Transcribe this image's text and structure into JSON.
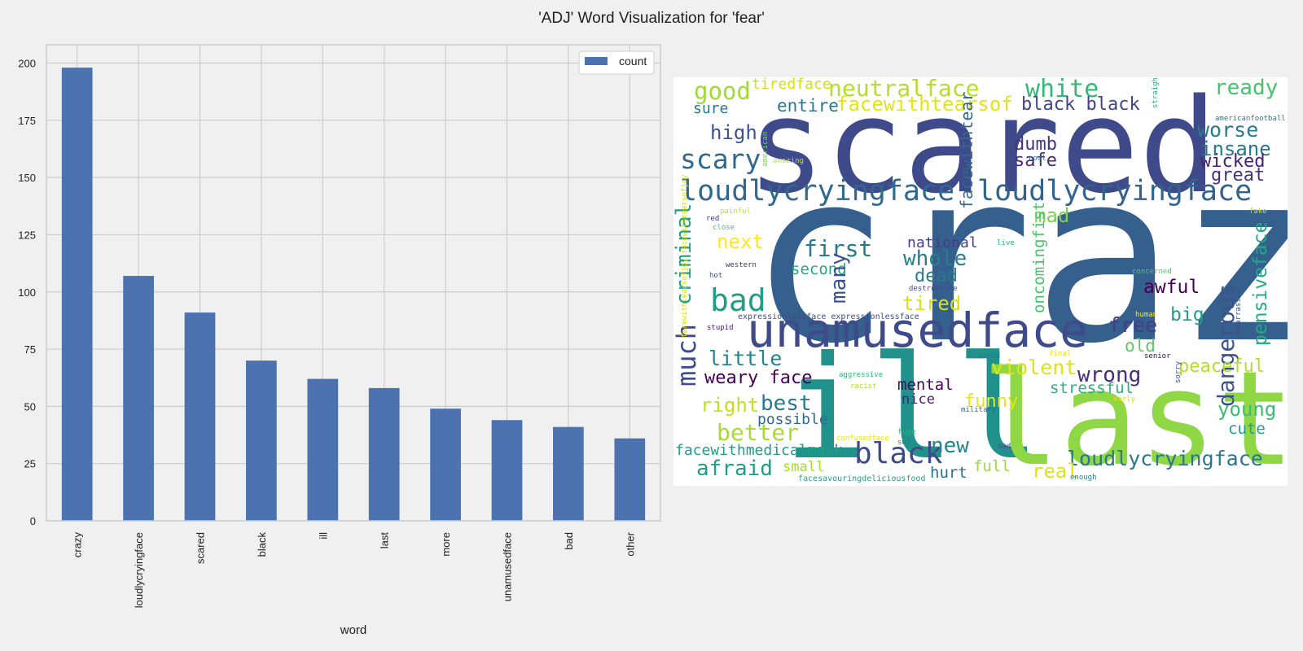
{
  "chart_data": [
    {
      "type": "bar",
      "title": "'ADJ' Word Visualization for 'fear'",
      "xlabel": "word",
      "ylabel": "",
      "categories": [
        "crazy",
        "loudlycryingface",
        "scared",
        "black",
        "ill",
        "last",
        "more",
        "unamusedface",
        "bad",
        "other"
      ],
      "series": [
        {
          "name": "count",
          "values": [
            198,
            107,
            91,
            70,
            62,
            58,
            49,
            44,
            41,
            36
          ]
        }
      ],
      "yticks": [
        0,
        25,
        50,
        75,
        100,
        125,
        150,
        175,
        200
      ],
      "ylim": [
        0,
        208
      ],
      "grid": true,
      "legend": "top-right",
      "bar_color": "#4c72b0"
    },
    {
      "type": "wordcloud",
      "words": [
        {
          "text": "crazy",
          "color": "#355f8d"
        },
        {
          "text": "scared",
          "color": "#3e4a89"
        },
        {
          "text": "ill",
          "color": "#21918c"
        },
        {
          "text": "last",
          "color": "#8fd744"
        },
        {
          "text": "unamusedface",
          "color": "#3e4a89"
        },
        {
          "text": "loudlycryingface",
          "color": "#31688e"
        },
        {
          "text": "loudlycryingface",
          "color": "#33638d"
        },
        {
          "text": "loudlycryingface",
          "color": "#2a788e"
        },
        {
          "text": "black",
          "color": "#3e4a89"
        },
        {
          "text": "neutralface",
          "color": "#b5de2b"
        },
        {
          "text": "facewithtearsof",
          "color": "#e3e418"
        },
        {
          "text": "white",
          "color": "#35b779"
        },
        {
          "text": "good",
          "color": "#a0da39"
        },
        {
          "text": "tiredface",
          "color": "#d0e11c"
        },
        {
          "text": "entire",
          "color": "#2a788e"
        },
        {
          "text": "sure",
          "color": "#2a788e"
        },
        {
          "text": "black black",
          "color": "#414487"
        },
        {
          "text": "ready",
          "color": "#4ac16d"
        },
        {
          "text": "worse",
          "color": "#2a788e"
        },
        {
          "text": "insane",
          "color": "#2a788e"
        },
        {
          "text": "wicked",
          "color": "#482173"
        },
        {
          "text": "great",
          "color": "#46337e"
        },
        {
          "text": "high",
          "color": "#3b528b"
        },
        {
          "text": "scary",
          "color": "#31688e"
        },
        {
          "text": "dumb",
          "color": "#46337e"
        },
        {
          "text": "safe",
          "color": "#482878"
        },
        {
          "text": "facewithtear",
          "color": "#31688e"
        },
        {
          "text": "criminal",
          "color": "#1fa187"
        },
        {
          "text": "mad",
          "color": "#7ad151"
        },
        {
          "text": "first",
          "color": "#2a788e"
        },
        {
          "text": "next",
          "color": "#fde725"
        },
        {
          "text": "national",
          "color": "#433e85"
        },
        {
          "text": "whole",
          "color": "#277f8e"
        },
        {
          "text": "second",
          "color": "#22a884"
        },
        {
          "text": "many",
          "color": "#3b528b"
        },
        {
          "text": "dead",
          "color": "#2a788e"
        },
        {
          "text": "bad",
          "color": "#1f9e89"
        },
        {
          "text": "tired",
          "color": "#d8e219"
        },
        {
          "text": "much",
          "color": "#3e4a89"
        },
        {
          "text": "oncomingfist",
          "color": "#4ac16d"
        },
        {
          "text": "dangerous",
          "color": "#3b528b"
        },
        {
          "text": "pensiveface",
          "color": "#22a884"
        },
        {
          "text": "awful",
          "color": "#440154"
        },
        {
          "text": "big",
          "color": "#1f9e89"
        },
        {
          "text": "free",
          "color": "#433e85"
        },
        {
          "text": "old",
          "color": "#5ec962"
        },
        {
          "text": "little",
          "color": "#25848e"
        },
        {
          "text": "violent",
          "color": "#dde318"
        },
        {
          "text": "wrong",
          "color": "#472d7b"
        },
        {
          "text": "peaceful",
          "color": "#b5de2b"
        },
        {
          "text": "weary face",
          "color": "#440154"
        },
        {
          "text": "mental",
          "color": "#450559"
        },
        {
          "text": "nice",
          "color": "#482173"
        },
        {
          "text": "stressful",
          "color": "#2ab07f"
        },
        {
          "text": "young",
          "color": "#3dbc74"
        },
        {
          "text": "right",
          "color": "#c2df23"
        },
        {
          "text": "best",
          "color": "#2a788e"
        },
        {
          "text": "funny",
          "color": "#e5e419"
        },
        {
          "text": "cute",
          "color": "#1f9e89"
        },
        {
          "text": "possible",
          "color": "#31688e"
        },
        {
          "text": "better",
          "color": "#a8db34"
        },
        {
          "text": "facewithmedicalmask",
          "color": "#1f9e89"
        },
        {
          "text": "new",
          "color": "#26828e"
        },
        {
          "text": "afraid",
          "color": "#1f9e89"
        },
        {
          "text": "small",
          "color": "#a5db36"
        },
        {
          "text": "hurt",
          "color": "#2c728e"
        },
        {
          "text": "full",
          "color": "#9bd93c"
        },
        {
          "text": "real",
          "color": "#dde318"
        },
        {
          "text": "facesavouringdeliciousfood",
          "color": "#1f9e89"
        },
        {
          "text": "expressionlessface expressionlessface",
          "color": "#3e4a89"
        },
        {
          "text": "facewithtearsofjoy facewithtearsofjoy",
          "color": "#d0e11c"
        },
        {
          "text": "americanfootball",
          "color": "#2a788e"
        },
        {
          "text": "straight",
          "color": "#2ab07f"
        },
        {
          "text": "amazing",
          "color": "#c2df23"
        },
        {
          "text": "american",
          "color": "#7ad151"
        },
        {
          "text": "cool",
          "color": "#2a788e"
        },
        {
          "text": "painful",
          "color": "#c2df23"
        },
        {
          "text": "red",
          "color": "#46337e"
        },
        {
          "text": "close",
          "color": "#4ac16d"
        },
        {
          "text": "fake",
          "color": "#bddf26"
        },
        {
          "text": "live",
          "color": "#2ab07f"
        },
        {
          "text": "western",
          "color": "#472d7b"
        },
        {
          "text": "hot",
          "color": "#3b528b"
        },
        {
          "text": "destructive",
          "color": "#3e4a89"
        },
        {
          "text": "concerned",
          "color": "#52c569"
        },
        {
          "text": "stupid",
          "color": "#482173"
        },
        {
          "text": "human",
          "color": "#fde725"
        },
        {
          "text": "embarrassed",
          "color": "#3b528b"
        },
        {
          "text": "armed",
          "color": "#2a788e"
        },
        {
          "text": "senior",
          "color": "#440154"
        },
        {
          "text": "final",
          "color": "#e5e419"
        },
        {
          "text": "aggressive",
          "color": "#35b779"
        },
        {
          "text": "racist",
          "color": "#b5de2b"
        },
        {
          "text": "sorry",
          "color": "#3e4a89"
        },
        {
          "text": "early",
          "color": "#dde318"
        },
        {
          "text": "military",
          "color": "#31688e"
        },
        {
          "text": "confusedface",
          "color": "#e3e418"
        },
        {
          "text": "huge",
          "color": "#2ab07f"
        },
        {
          "text": "sof",
          "color": "#2a788e"
        },
        {
          "text": "sad",
          "color": "#3b528b"
        },
        {
          "text": "enough",
          "color": "#26828e"
        }
      ]
    }
  ]
}
